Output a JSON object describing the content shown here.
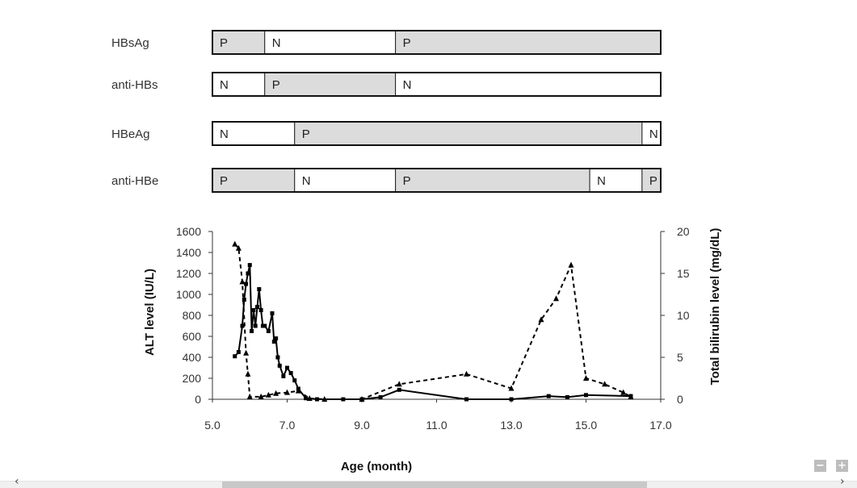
{
  "serology": [
    {
      "marker": "HBsAg",
      "segments": [
        {
          "start": 5.0,
          "end": 6.4,
          "label": "P",
          "positive": true
        },
        {
          "start": 6.4,
          "end": 9.9,
          "label": "N",
          "positive": false
        },
        {
          "start": 9.9,
          "end": 17.0,
          "label": "P",
          "positive": true
        }
      ]
    },
    {
      "marker": "anti-HBs",
      "segments": [
        {
          "start": 5.0,
          "end": 6.4,
          "label": "N",
          "positive": false
        },
        {
          "start": 6.4,
          "end": 9.9,
          "label": "P",
          "positive": true
        },
        {
          "start": 9.9,
          "end": 17.0,
          "label": "N",
          "positive": false
        }
      ]
    },
    {
      "marker": "HBeAg",
      "segments": [
        {
          "start": 5.0,
          "end": 7.2,
          "label": "N",
          "positive": false
        },
        {
          "start": 7.2,
          "end": 16.5,
          "label": "P",
          "positive": true
        },
        {
          "start": 16.5,
          "end": 17.0,
          "label": "N",
          "positive": false
        }
      ]
    },
    {
      "marker": "anti-HBe",
      "segments": [
        {
          "start": 5.0,
          "end": 7.2,
          "label": "P",
          "positive": true
        },
        {
          "start": 7.2,
          "end": 9.9,
          "label": "N",
          "positive": false
        },
        {
          "start": 9.9,
          "end": 15.1,
          "label": "P",
          "positive": true
        },
        {
          "start": 15.1,
          "end": 16.5,
          "label": "N",
          "positive": false
        },
        {
          "start": 16.5,
          "end": 17.0,
          "label": "P",
          "positive": true
        }
      ]
    }
  ],
  "chart_data": {
    "type": "line",
    "xlabel": "Age (month)",
    "ylabel": "ALT level (IU/L)",
    "ylabel_right": "Total bilirubin level (mg/dL)",
    "xlim": [
      5.0,
      17.0
    ],
    "x_ticks": [
      "5.0",
      "7.0",
      "9.0",
      "11.0",
      "13.0",
      "15.0",
      "17.0"
    ],
    "ylim": [
      0,
      1600
    ],
    "y_ticks": [
      "0",
      "200",
      "400",
      "600",
      "800",
      "1000",
      "1200",
      "1400",
      "1600"
    ],
    "ylim_right": [
      0,
      20
    ],
    "y_ticks_right": [
      "0",
      "5",
      "10",
      "15",
      "20"
    ],
    "grid": false,
    "series": [
      {
        "axis": "left",
        "style": "solid",
        "marker": "square",
        "color": "#000000",
        "x": [
          5.6,
          5.7,
          5.8,
          5.85,
          5.9,
          5.95,
          6.0,
          6.05,
          6.1,
          6.15,
          6.2,
          6.25,
          6.3,
          6.35,
          6.4,
          6.5,
          6.6,
          6.65,
          6.7,
          6.75,
          6.8,
          6.9,
          7.0,
          7.1,
          7.2,
          7.3,
          7.5,
          7.8,
          8.5,
          9.0,
          9.5,
          10.0,
          11.8,
          13.0,
          14.0,
          14.5,
          15.0,
          16.2
        ],
        "y": [
          410,
          450,
          700,
          950,
          1100,
          1200,
          1280,
          650,
          850,
          700,
          880,
          1050,
          850,
          700,
          700,
          650,
          820,
          550,
          580,
          400,
          320,
          220,
          300,
          250,
          180,
          100,
          10,
          0,
          0,
          0,
          20,
          90,
          0,
          0,
          30,
          20,
          40,
          30
        ]
      },
      {
        "axis": "right",
        "style": "dashed",
        "marker": "triangle",
        "color": "#000000",
        "x": [
          5.6,
          5.7,
          5.8,
          5.9,
          5.95,
          6.0,
          6.3,
          6.5,
          6.7,
          7.0,
          7.3,
          7.6,
          8.0,
          9.0,
          10.0,
          11.8,
          13.0,
          13.8,
          14.2,
          14.6,
          15.0,
          15.5,
          16.0,
          16.2
        ],
        "y": [
          18.5,
          18,
          14,
          5.5,
          3,
          0.3,
          0.3,
          0.5,
          0.7,
          0.8,
          1.0,
          0.1,
          0,
          0,
          1.8,
          3.0,
          1.3,
          9.5,
          12,
          16,
          2.5,
          1.8,
          0.8,
          0.3
        ]
      }
    ]
  }
}
